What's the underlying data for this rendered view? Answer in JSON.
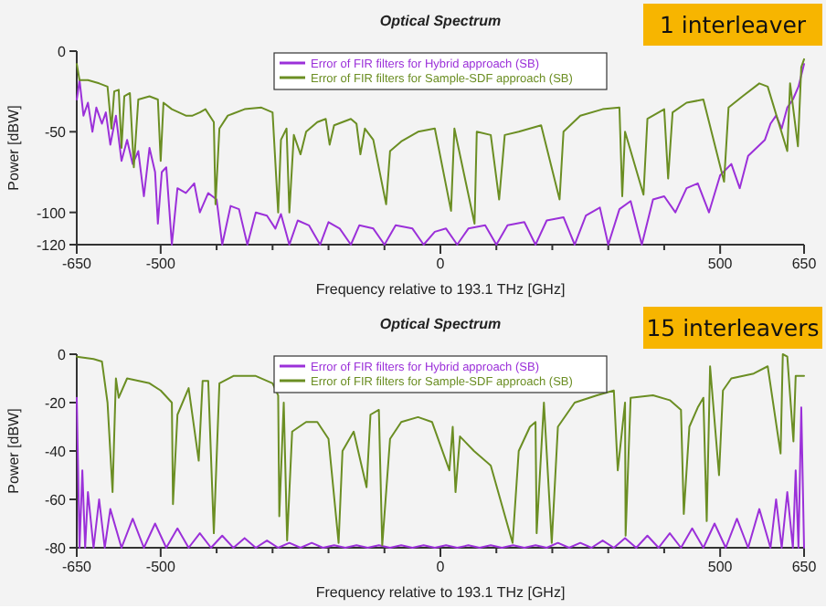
{
  "chart_data": [
    {
      "type": "line",
      "title": "Optical Spectrum",
      "xlabel": "Frequency relative to 193.1 THz [GHz]",
      "ylabel": "Power [dBW]",
      "legend": "top",
      "annotations": [
        "1 interleaver"
      ],
      "xlim": [
        -650,
        650
      ],
      "ylim": [
        -120,
        0
      ],
      "xticks": [
        -650,
        -500,
        {
          "value": -400,
          "label": null
        },
        {
          "value": -300,
          "label": null
        },
        {
          "value": -200,
          "label": null
        },
        {
          "value": -100,
          "label": null
        },
        0,
        {
          "value": 100,
          "label": null
        },
        {
          "value": 200,
          "label": null
        },
        {
          "value": 300,
          "label": null
        },
        {
          "value": 400,
          "label": null
        },
        500,
        650
      ],
      "yticks": [
        -120,
        -100,
        -50,
        0
      ],
      "series": [
        {
          "name": "Error of FIR filters for Hybrid approach (SB)",
          "color": "#9b30d9",
          "x": [
            -650,
            -645,
            -638,
            -630,
            -622,
            -615,
            -605,
            -598,
            -590,
            -580,
            -570,
            -560,
            -550,
            -540,
            -530,
            -520,
            -510,
            -505,
            -498,
            -490,
            -480,
            -470,
            -455,
            -440,
            -430,
            -415,
            -400,
            -390,
            -375,
            -360,
            -345,
            -330,
            -310,
            -295,
            -285,
            -270,
            -255,
            -235,
            -215,
            -200,
            -180,
            -160,
            -145,
            -120,
            -100,
            -80,
            -50,
            -30,
            -10,
            10,
            30,
            50,
            80,
            100,
            120,
            150,
            170,
            190,
            220,
            240,
            260,
            285,
            300,
            320,
            340,
            360,
            380,
            400,
            420,
            440,
            460,
            480,
            500,
            520,
            535,
            550,
            565,
            580,
            590,
            600,
            610,
            620,
            630,
            640,
            645,
            650
          ],
          "values": [
            -30,
            -18,
            -40,
            -32,
            -50,
            -35,
            -45,
            -38,
            -58,
            -40,
            -68,
            -55,
            -70,
            -62,
            -90,
            -60,
            -75,
            -107,
            -75,
            -72,
            -120,
            -85,
            -88,
            -82,
            -100,
            -88,
            -92,
            -120,
            -96,
            -98,
            -120,
            -100,
            -102,
            -110,
            -101,
            -120,
            -105,
            -108,
            -120,
            -106,
            -110,
            -120,
            -108,
            -110,
            -120,
            -108,
            -110,
            -120,
            -112,
            -110,
            -120,
            -110,
            -108,
            -120,
            -108,
            -106,
            -120,
            -105,
            -103,
            -120,
            -102,
            -97,
            -120,
            -98,
            -93,
            -120,
            -92,
            -90,
            -100,
            -85,
            -82,
            -100,
            -77,
            -70,
            -85,
            -65,
            -60,
            -55,
            -45,
            -40,
            -48,
            -35,
            -30,
            -22,
            -15,
            -8
          ]
        },
        {
          "name": "Error of FIR filters for Sample-SDF approach (SB)",
          "color": "#6b8e23",
          "x": [
            -650,
            -645,
            -630,
            -610,
            -595,
            -588,
            -583,
            -575,
            -570,
            -565,
            -555,
            -548,
            -540,
            -520,
            -505,
            -500,
            -495,
            -480,
            -455,
            -443,
            -430,
            -420,
            -405,
            -402,
            -395,
            -380,
            -350,
            -320,
            -300,
            -290,
            -285,
            -275,
            -270,
            -262,
            -250,
            -240,
            -220,
            -205,
            -198,
            -190,
            -160,
            -150,
            -143,
            -135,
            -120,
            -97,
            -90,
            -70,
            -40,
            -10,
            19,
            25,
            61,
            65,
            90,
            105,
            115,
            140,
            170,
            180,
            213,
            220,
            250,
            290,
            320,
            325,
            330,
            363,
            370,
            400,
            407,
            415,
            440,
            470,
            507,
            515,
            540,
            570,
            585,
            620,
            625,
            639,
            645,
            650
          ],
          "values": [
            -8,
            -18,
            -18,
            -20,
            -22,
            -48,
            -25,
            -24,
            -60,
            -28,
            -26,
            -72,
            -30,
            -28,
            -30,
            -68,
            -32,
            -36,
            -40,
            -40,
            -38,
            -36,
            -44,
            -95,
            -48,
            -40,
            -36,
            -35,
            -38,
            -100,
            -55,
            -48,
            -100,
            -52,
            -64,
            -50,
            -44,
            -42,
            -58,
            -46,
            -42,
            -45,
            -64,
            -48,
            -55,
            -95,
            -62,
            -56,
            -50,
            -48,
            -99,
            -48,
            -107,
            -50,
            -52,
            -92,
            -52,
            -50,
            -47,
            -46,
            -92,
            -50,
            -40,
            -36,
            -35,
            -90,
            -50,
            -89,
            -42,
            -36,
            -79,
            -38,
            -32,
            -30,
            -81,
            -35,
            -28,
            -20,
            -22,
            -62,
            -20,
            -59,
            -10,
            -5
          ]
        }
      ]
    },
    {
      "type": "line",
      "title": "Optical Spectrum",
      "xlabel": "Frequency relative to 193.1 THz [GHz]",
      "ylabel": "Power [dBW]",
      "legend": "top",
      "annotations": [
        "15 interleavers"
      ],
      "xlim": [
        -650,
        650
      ],
      "ylim": [
        -80,
        0
      ],
      "xticks": [
        -650,
        -500,
        {
          "value": -400,
          "label": null
        },
        {
          "value": -300,
          "label": null
        },
        {
          "value": -200,
          "label": null
        },
        {
          "value": -100,
          "label": null
        },
        0,
        {
          "value": 100,
          "label": null
        },
        {
          "value": 200,
          "label": null
        },
        {
          "value": 300,
          "label": null
        },
        {
          "value": 400,
          "label": null
        },
        500,
        650
      ],
      "yticks": [
        -80,
        -60,
        -40,
        -20,
        0
      ],
      "series": [
        {
          "name": "Error of FIR filters for Hybrid approach (SB)",
          "color": "#9b30d9",
          "x": [
            -650,
            -645,
            -640,
            -635,
            -630,
            -620,
            -610,
            -600,
            -590,
            -570,
            -550,
            -530,
            -510,
            -490,
            -470,
            -450,
            -430,
            -410,
            -390,
            -370,
            -350,
            -330,
            -310,
            -290,
            -270,
            -250,
            -230,
            -210,
            -190,
            -170,
            -150,
            -130,
            -110,
            -90,
            -70,
            -50,
            -30,
            -10,
            10,
            30,
            50,
            70,
            90,
            110,
            130,
            150,
            170,
            190,
            210,
            230,
            250,
            270,
            290,
            310,
            330,
            350,
            370,
            390,
            410,
            430,
            450,
            470,
            490,
            510,
            530,
            550,
            570,
            590,
            600,
            610,
            620,
            630,
            635,
            640,
            645,
            650
          ],
          "values": [
            -18,
            -80,
            -48,
            -80,
            -57,
            -80,
            -60,
            -80,
            -64,
            -80,
            -68,
            -80,
            -70,
            -80,
            -72,
            -80,
            -74,
            -80,
            -75,
            -80,
            -76,
            -80,
            -77,
            -80,
            -78,
            -80,
            -78,
            -80,
            -79,
            -80,
            -79,
            -80,
            -79,
            -80,
            -79,
            -80,
            -79,
            -80,
            -79,
            -80,
            -79,
            -80,
            -79,
            -80,
            -79,
            -80,
            -79,
            -80,
            -78,
            -80,
            -78,
            -80,
            -77,
            -80,
            -76,
            -80,
            -75,
            -80,
            -74,
            -80,
            -72,
            -80,
            -70,
            -80,
            -68,
            -80,
            -64,
            -80,
            -60,
            -80,
            -57,
            -80,
            -48,
            -80,
            -22,
            -80
          ]
        },
        {
          "name": "Error of FIR filters for Sample-SDF approach (SB)",
          "color": "#6b8e23",
          "x": [
            -650,
            -620,
            -605,
            -595,
            -586,
            -580,
            -575,
            -560,
            -520,
            -500,
            -480,
            -478,
            -470,
            -450,
            -432,
            -425,
            -415,
            -405,
            -395,
            -370,
            -330,
            -300,
            -290,
            -288,
            -280,
            -274,
            -265,
            -240,
            -220,
            -200,
            -182,
            -175,
            -155,
            -132,
            -125,
            -110,
            -104,
            -90,
            -70,
            -40,
            -15,
            16,
            22,
            27,
            35,
            60,
            90,
            129,
            140,
            160,
            170,
            172,
            185,
            199,
            210,
            240,
            280,
            310,
            317,
            330,
            331,
            340,
            380,
            410,
            430,
            435,
            445,
            460,
            470,
            476,
            482,
            498,
            505,
            520,
            560,
            585,
            608,
            612,
            620,
            631,
            635,
            650
          ],
          "values": [
            -1,
            -2,
            -3,
            -20,
            -57,
            -10,
            -18,
            -10,
            -12,
            -15,
            -20,
            -62,
            -25,
            -14,
            -44,
            -11,
            -11,
            -74,
            -12,
            -9,
            -9,
            -12,
            -17,
            -67,
            -20,
            -77,
            -32,
            -28,
            -28,
            -35,
            -78,
            -40,
            -32,
            -55,
            -25,
            -23,
            -79,
            -35,
            -28,
            -26,
            -28,
            -48,
            -30,
            -57,
            -34,
            -40,
            -46,
            -78,
            -40,
            -30,
            -28,
            -74,
            -20,
            -78,
            -30,
            -20,
            -17,
            -15,
            -48,
            -20,
            -75,
            -18,
            -17,
            -19,
            -23,
            -66,
            -30,
            -22,
            -18,
            -69,
            -5,
            -50,
            -15,
            -10,
            -8,
            -5,
            -41,
            0,
            -1,
            -36,
            -9,
            -9
          ]
        }
      ]
    }
  ]
}
